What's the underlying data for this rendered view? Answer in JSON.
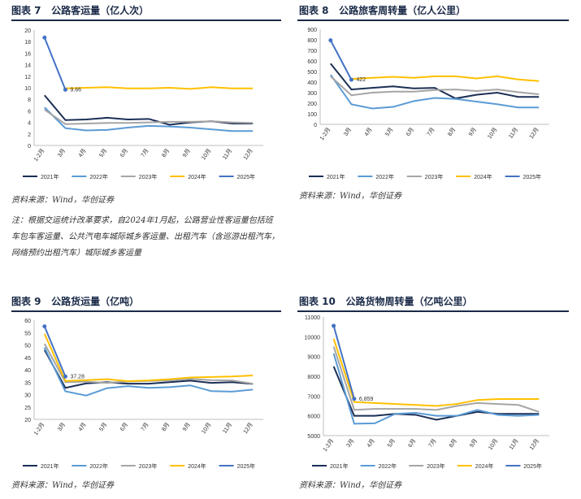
{
  "charts": [
    {
      "figure_label": "图表 7",
      "title": "公路客运量（亿人次）",
      "source": "资料来源：Wind，华创证券",
      "chart_data": {
        "type": "line",
        "categories": [
          "1-2月",
          "3月",
          "4月",
          "5月",
          "6月",
          "7月",
          "8月",
          "9月",
          "10月",
          "11月",
          "12月"
        ],
        "ylim": [
          0,
          20
        ],
        "yticks": [
          0,
          2,
          4,
          6,
          8,
          10,
          12,
          14,
          16,
          18,
          20
        ],
        "annotation": {
          "text": "9.66",
          "series": "2025年",
          "index": 1
        },
        "series": [
          {
            "name": "2021年",
            "color": "#1b2f55",
            "values": [
              8.7,
              4.4,
              4.5,
              4.8,
              4.5,
              4.6,
              3.6,
              4.0,
              4.2,
              3.8,
              3.8
            ]
          },
          {
            "name": "2022年",
            "color": "#5b9bd5",
            "values": [
              6.6,
              3.0,
              2.6,
              2.7,
              3.1,
              3.4,
              3.3,
              3.1,
              2.8,
              2.5,
              2.5
            ]
          },
          {
            "name": "2023年",
            "color": "#a5a5a5",
            "values": [
              6.2,
              3.7,
              3.8,
              3.9,
              3.9,
              4.0,
              4.1,
              4.1,
              4.2,
              4.0,
              3.9
            ]
          },
          {
            "name": "2024年",
            "color": "#ffc000",
            "values": [
              null,
              9.9,
              10.0,
              10.1,
              9.9,
              9.9,
              10.0,
              9.8,
              10.1,
              9.9,
              9.9
            ]
          },
          {
            "name": "2025年",
            "color": "#4472c4",
            "values": [
              18.7,
              9.66,
              null,
              null,
              null,
              null,
              null,
              null,
              null,
              null,
              null
            ]
          }
        ]
      }
    },
    {
      "figure_label": "图表 8",
      "title": "公路旅客周转量（亿人公里）",
      "source": "资料来源：Wind，华创证券",
      "chart_data": {
        "type": "line",
        "categories": [
          "1-2月",
          "3月",
          "4月",
          "5月",
          "6月",
          "7月",
          "8月",
          "9月",
          "10月",
          "11月",
          "12月"
        ],
        "ylim": [
          0,
          900
        ],
        "yticks": [
          0,
          100,
          200,
          300,
          400,
          500,
          600,
          700,
          800,
          900
        ],
        "annotation": {
          "text": "422",
          "series": "2025年",
          "index": 1
        },
        "series": [
          {
            "name": "2021年",
            "color": "#1b2f55",
            "values": [
              575,
              330,
              345,
              360,
              340,
              345,
              245,
              280,
              300,
              260,
              260
            ]
          },
          {
            "name": "2022年",
            "color": "#5b9bd5",
            "values": [
              470,
              190,
              150,
              165,
              220,
              250,
              240,
              215,
              190,
              160,
              160
            ]
          },
          {
            "name": "2023年",
            "color": "#a5a5a5",
            "values": [
              455,
              275,
              300,
              310,
              310,
              325,
              330,
              315,
              330,
              305,
              285
            ]
          },
          {
            "name": "2024年",
            "color": "#ffc000",
            "values": [
              null,
              430,
              440,
              450,
              440,
              455,
              455,
              435,
              455,
              425,
              410
            ]
          },
          {
            "name": "2025年",
            "color": "#4472c4",
            "values": [
              795,
              422,
              null,
              null,
              null,
              null,
              null,
              null,
              null,
              null,
              null
            ]
          }
        ]
      }
    },
    {
      "figure_label": "图表 9",
      "title": "公路货运量（亿吨）",
      "source": "资料来源：Wind，华创证券",
      "chart_data": {
        "type": "line",
        "categories": [
          "1-2月",
          "3月",
          "4月",
          "5月",
          "6月",
          "7月",
          "8月",
          "9月",
          "10月",
          "11月",
          "12月"
        ],
        "ylim": [
          20,
          60
        ],
        "yticks": [
          20,
          25,
          30,
          35,
          40,
          45,
          50,
          55,
          60
        ],
        "annotation": {
          "text": "37.28",
          "series": "2025年",
          "index": 1
        },
        "series": [
          {
            "name": "2021年",
            "color": "#1b2f55",
            "values": [
              48.0,
              32.7,
              34.5,
              35.0,
              34.4,
              34.4,
              35.0,
              35.6,
              34.7,
              35.0,
              34.3
            ]
          },
          {
            "name": "2022年",
            "color": "#5b9bd5",
            "values": [
              49.0,
              31.3,
              29.6,
              32.6,
              33.4,
              32.7,
              33.0,
              33.7,
              31.4,
              31.2,
              32.0
            ]
          },
          {
            "name": "2023年",
            "color": "#a5a5a5",
            "values": [
              50.5,
              35.0,
              35.2,
              34.7,
              35.3,
              35.5,
              35.7,
              36.3,
              35.8,
              35.7,
              34.4
            ]
          },
          {
            "name": "2024年",
            "color": "#ffc000",
            "values": [
              54.5,
              35.5,
              35.8,
              36.2,
              35.4,
              35.7,
              36.2,
              36.9,
              37.1,
              37.3,
              37.7
            ]
          },
          {
            "name": "2025年",
            "color": "#4472c4",
            "values": [
              57.5,
              37.28,
              null,
              null,
              null,
              null,
              null,
              null,
              null,
              null,
              null
            ]
          }
        ]
      }
    },
    {
      "figure_label": "图表 10",
      "title": "公路货物周转量（亿吨公里）",
      "source": "资料来源：Wind，华创证券",
      "chart_data": {
        "type": "line",
        "categories": [
          "1-2月",
          "3月",
          "4月",
          "5月",
          "6月",
          "7月",
          "8月",
          "9月",
          "10月",
          "11月",
          "12月"
        ],
        "ylim": [
          5000,
          11000
        ],
        "yticks": [
          5000,
          6000,
          7000,
          8000,
          9000,
          10000,
          11000
        ],
        "annotation": {
          "text": "6,859",
          "series": "2025年",
          "index": 1
        },
        "series": [
          {
            "name": "2021年",
            "color": "#1b2f55",
            "values": [
              8500,
              6000,
              6000,
              6100,
              6050,
              5800,
              6000,
              6200,
              6100,
              6100,
              6100
            ]
          },
          {
            "name": "2022年",
            "color": "#5b9bd5",
            "values": [
              9150,
              5600,
              5620,
              6100,
              6150,
              6000,
              6000,
              6300,
              6050,
              6000,
              6050
            ]
          },
          {
            "name": "2023年",
            "color": "#a5a5a5",
            "values": [
              9500,
              6300,
              6350,
              6350,
              6350,
              6300,
              6500,
              6650,
              6600,
              6550,
              6200
            ]
          },
          {
            "name": "2024年",
            "color": "#ffc000",
            "values": [
              9900,
              6700,
              6650,
              6600,
              6550,
              6500,
              6600,
              6800,
              6850,
              6850,
              6850
            ]
          },
          {
            "name": "2025年",
            "color": "#4472c4",
            "values": [
              10550,
              6859,
              null,
              null,
              null,
              null,
              null,
              null,
              null,
              null,
              null
            ]
          }
        ]
      }
    }
  ],
  "note": "注：根据交运统计改革要求，自2024年1月起，公路营业性客运量包括班车包车客运量、公共汽电车城际城乡客运量、出租汽车（含巡游出租汽车，网络预约出租汽车）城际城乡客运量"
}
